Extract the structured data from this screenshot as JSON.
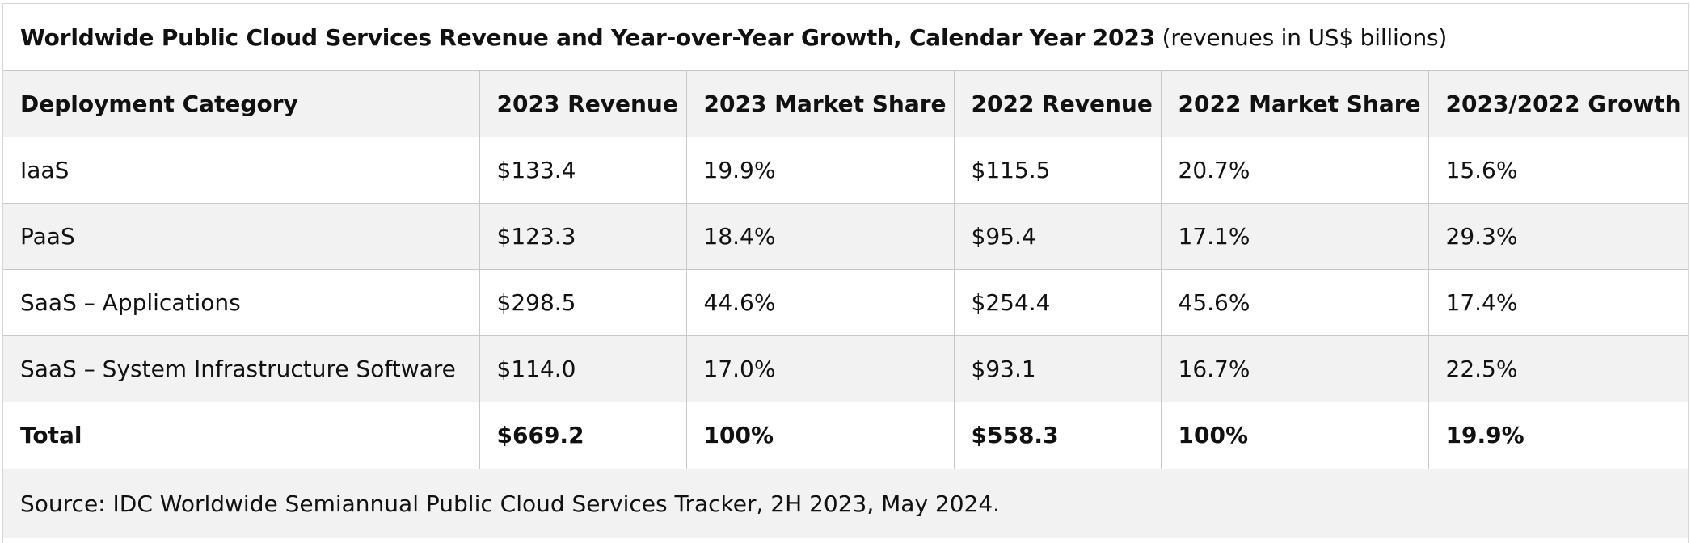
{
  "title": {
    "bold": "Worldwide Public Cloud Services Revenue and Year-over-Year Growth, Calendar Year 2023",
    "normal": " (revenues in US$ billions)"
  },
  "table": {
    "headers": [
      "Deployment Category",
      "2023 Revenue",
      "2023 Market Share",
      "2022 Revenue",
      "2022 Market Share",
      "2023/2022 Growth"
    ],
    "rows": [
      [
        "IaaS",
        "$133.4",
        "19.9%",
        "$115.5",
        "20.7%",
        "15.6%"
      ],
      [
        "PaaS",
        "$123.3",
        "18.4%",
        "$95.4",
        "17.1%",
        "29.3%"
      ],
      [
        "SaaS – Applications",
        "$298.5",
        "44.6%",
        "$254.4",
        "45.6%",
        "17.4%"
      ],
      [
        "SaaS – System Infrastructure Software",
        "$114.0",
        "17.0%",
        "$93.1",
        "16.7%",
        "22.5%"
      ]
    ],
    "total": [
      "Total",
      "$669.2",
      "100%",
      "$558.3",
      "100%",
      "19.9%"
    ]
  },
  "source": "Source: IDC Worldwide Semiannual Public Cloud Services Tracker, 2H 2023, May 2024.",
  "colors": {
    "shaded_row": "#f2f2f2",
    "border": "#c8c8c8",
    "text": "#111111"
  },
  "chart_data": {
    "type": "table",
    "title": "Worldwide Public Cloud Services Revenue and Year-over-Year Growth, Calendar Year 2023 (revenues in US$ billions)",
    "columns": [
      "Deployment Category",
      "2023 Revenue",
      "2023 Market Share",
      "2022 Revenue",
      "2022 Market Share",
      "2023/2022 Growth"
    ],
    "rows": [
      [
        "IaaS",
        133.4,
        19.9,
        115.5,
        20.7,
        15.6
      ],
      [
        "PaaS",
        123.3,
        18.4,
        95.4,
        17.1,
        29.3
      ],
      [
        "SaaS – Applications",
        298.5,
        44.6,
        254.4,
        45.6,
        17.4
      ],
      [
        "SaaS – System Infrastructure Software",
        114.0,
        17.0,
        93.1,
        16.7,
        22.5
      ],
      [
        "Total",
        669.2,
        100,
        558.3,
        100,
        19.9
      ]
    ]
  }
}
